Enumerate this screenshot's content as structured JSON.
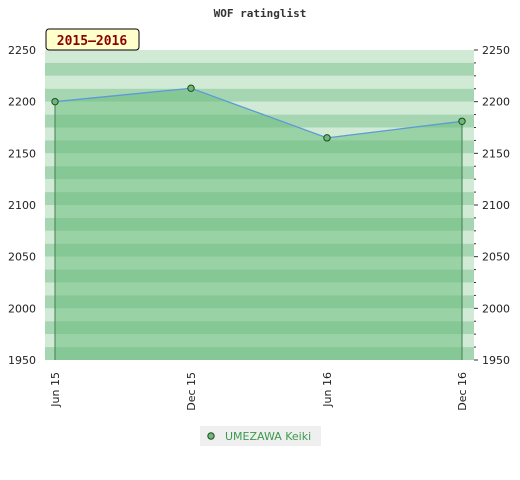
{
  "chart_data": {
    "type": "area",
    "title": "WOF ratinglist",
    "period": "2015–2016",
    "categories": [
      "Jun 15",
      "Dec 15",
      "Jun 16",
      "Dec 16"
    ],
    "series": [
      {
        "name": "UMEZAWA Keiki",
        "values": [
          2200,
          2213,
          2165,
          2181
        ]
      }
    ],
    "ylim": [
      1950,
      2250
    ],
    "yticks": [
      1950,
      2000,
      2050,
      2100,
      2150,
      2200,
      2250
    ],
    "grid": true,
    "legend_position": "bottom-center",
    "colors": {
      "line": "#5b9bd5",
      "area": "#6cbd7e",
      "marker": "#6fb77c",
      "band_light": "#c5e5cc",
      "band_dark": "#8dcb9c",
      "legend_text": "#3b9a4d",
      "period_bg": "#ffffcc"
    }
  }
}
